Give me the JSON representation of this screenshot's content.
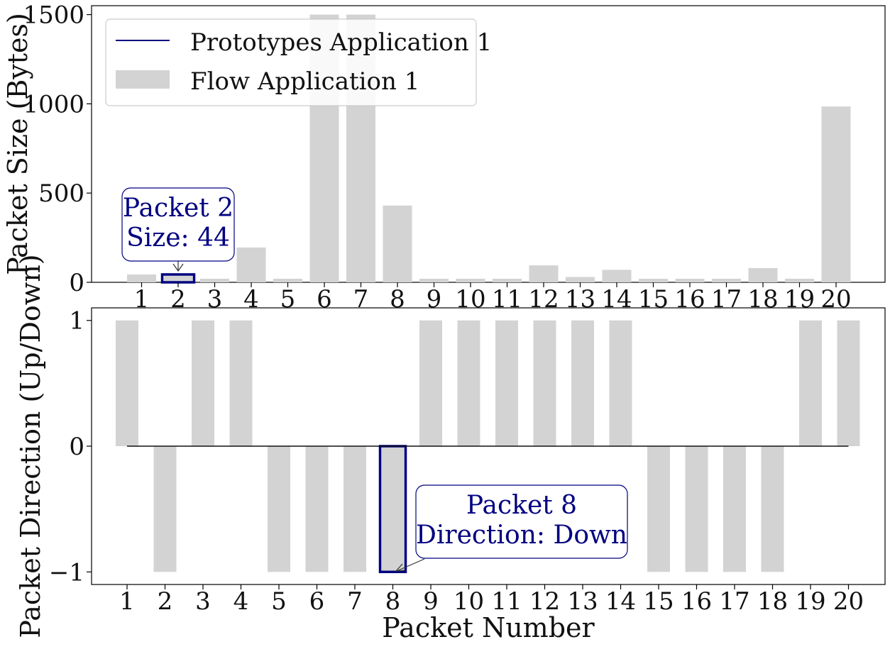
{
  "chart_data": [
    {
      "type": "bar",
      "categories": [
        "1",
        "2",
        "3",
        "4",
        "5",
        "6",
        "7",
        "8",
        "9",
        "10",
        "11",
        "12",
        "13",
        "14",
        "15",
        "16",
        "17",
        "18",
        "19",
        "20"
      ],
      "xlabel": "",
      "ylabel": "Packet Size (Bytes)",
      "ylim": [
        0,
        1550
      ],
      "y_ticks": [
        "0",
        "500",
        "1000",
        "1500"
      ],
      "y_tick_values": [
        0,
        500,
        1000,
        1500
      ],
      "series": [
        {
          "name": "Flow Application 1",
          "color": "#d3d3d3",
          "values": [
            44,
            44,
            20,
            195,
            20,
            1500,
            1500,
            430,
            20,
            20,
            20,
            95,
            30,
            70,
            20,
            20,
            20,
            80,
            20,
            985
          ]
        },
        {
          "name": "Prototypes Application 1",
          "color": "#000080",
          "values": [
            0,
            0,
            0,
            0,
            0,
            0,
            0,
            0,
            0,
            0,
            0,
            0,
            0,
            0,
            0,
            0,
            0,
            0,
            0,
            0
          ]
        }
      ],
      "highlight_index": 1,
      "annotation": {
        "line1": "Packet 2",
        "line2": "Size: 44"
      },
      "legend": {
        "placement": "upper-left",
        "entries": [
          "Prototypes Application 1",
          "Flow Application 1"
        ]
      }
    },
    {
      "type": "bar",
      "categories": [
        "1",
        "2",
        "3",
        "4",
        "5",
        "6",
        "7",
        "8",
        "9",
        "10",
        "11",
        "12",
        "13",
        "14",
        "15",
        "16",
        "17",
        "18",
        "19",
        "20"
      ],
      "xlabel": "Packet Number",
      "ylabel": "Packet Direction (Up/Down)",
      "ylim": [
        -1.1,
        1.1
      ],
      "y_ticks": [
        "1",
        "0",
        "−1"
      ],
      "y_tick_values": [
        1,
        0,
        -1
      ],
      "series": [
        {
          "name": "Flow Application 1",
          "color": "#d3d3d3",
          "values": [
            1,
            -1,
            1,
            1,
            -1,
            -1,
            -1,
            -1,
            1,
            1,
            1,
            1,
            1,
            1,
            -1,
            -1,
            -1,
            -1,
            1,
            1
          ]
        },
        {
          "name": "Prototypes Application 1",
          "color": "#000080",
          "values": [
            0,
            0,
            0,
            0,
            0,
            0,
            0,
            0,
            0,
            0,
            0,
            0,
            0,
            0,
            0,
            0,
            0,
            0,
            0,
            0
          ]
        }
      ],
      "highlight_index": 7,
      "annotation": {
        "line1": "Packet 8",
        "line2": "Direction: Down"
      }
    }
  ],
  "colors": {
    "flow_bar": "#d3d3d3",
    "highlight": "#000080",
    "callout_text": "#000080",
    "prototype_line": "#000080",
    "zero_line": "#000000"
  }
}
